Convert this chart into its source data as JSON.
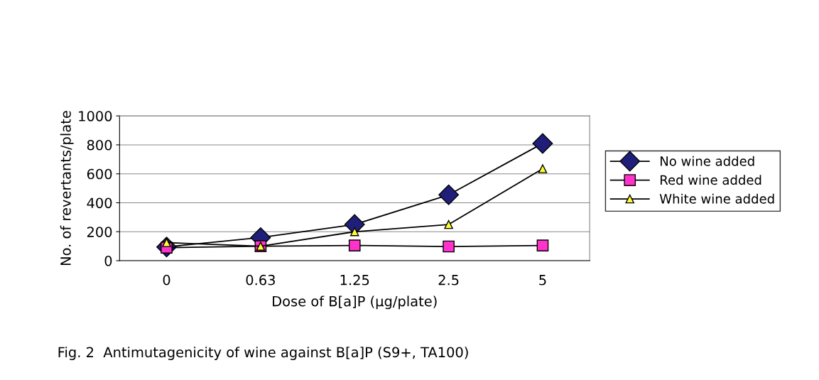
{
  "chart_data": {
    "type": "line",
    "xlabel": "Dose of B[a]P (μg/plate)",
    "ylabel": "No. of revertants/plate",
    "categories": [
      "0",
      "0.63",
      "1.25",
      "2.5",
      "5"
    ],
    "series": [
      {
        "name": "No wine added",
        "color": "#1f1f7a",
        "marker": "diamond",
        "values": [
          95,
          160,
          250,
          455,
          810
        ]
      },
      {
        "name": "Red wine added",
        "color": "#ff33cc",
        "marker": "square",
        "values": [
          90,
          100,
          105,
          98,
          105
        ]
      },
      {
        "name": "White wine added",
        "color": "#ffff33",
        "marker": "triangle",
        "values": [
          125,
          100,
          200,
          250,
          635
        ]
      }
    ],
    "ylim": [
      0,
      1000
    ],
    "yticks": [
      0,
      200,
      400,
      600,
      800,
      1000
    ],
    "grid": "y",
    "legend": "right",
    "line_style": "solid",
    "annotations": [
      "Fig. 2  Antimutagenicity of wine against B[a]P (S9+, TA100)"
    ]
  }
}
